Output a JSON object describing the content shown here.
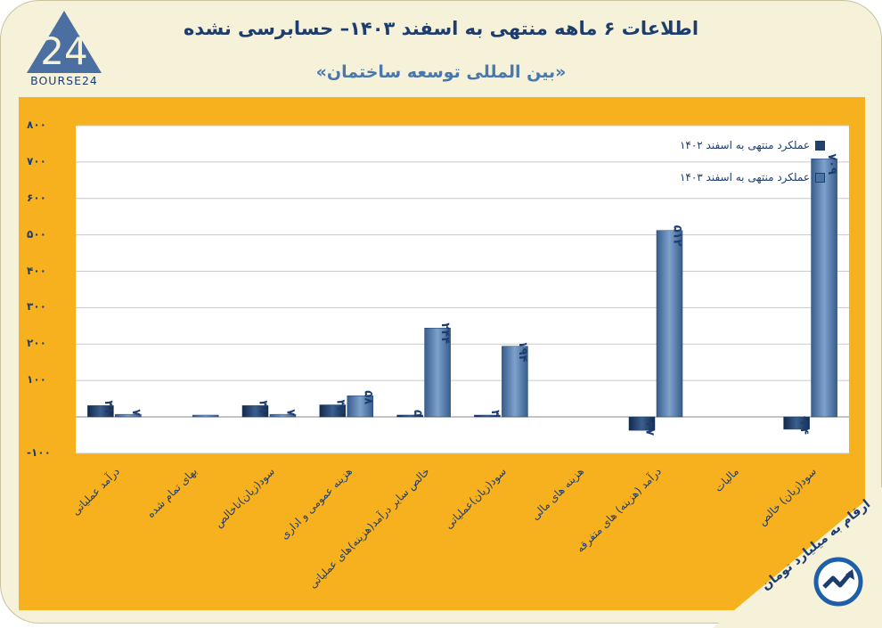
{
  "header": {
    "title": "اطلاعات ۶ ماهه منتهی به اسفند ۱۴۰۳– حسابرسی نشده",
    "subtitle": "«بین المللی توسعه ساختمان»",
    "logo_text": "BOURSE24"
  },
  "footer": {
    "units_note": "ارقام به میلیارد تومان"
  },
  "colors": {
    "background": "#f6f1d9",
    "panel": "#f7b11e",
    "series_1402": "#21426d",
    "series_1403": "#4b74a6",
    "text": "#1d3d6f"
  },
  "chart_data": {
    "type": "bar",
    "title": "بین المللی توسعه ساختمان",
    "xlabel": "",
    "ylabel": "",
    "ylim": [
      -100,
      800
    ],
    "yticks": [
      -100,
      100,
      200,
      300,
      400,
      500,
      600,
      700,
      800
    ],
    "ytick_labels": [
      "-۱۰۰",
      "۱۰۰",
      "۲۰۰",
      "۳۰۰",
      "۴۰۰",
      "۵۰۰",
      "۶۰۰",
      "۷۰۰",
      "۸۰۰"
    ],
    "grid": true,
    "legend_position": "top-right",
    "categories": [
      "درآمد عملیاتی",
      "بهای تمام شده",
      "سود(زیان)ناخالص",
      "هزینه عمومی و اداری",
      "خالص سایر درآمد(هزینه)های عملیاتی",
      "سود(زیان)عملیاتی",
      "هزینه های مالی",
      "درآمد (هزینه) های متفرقه",
      "مالیات",
      "سود(زیان) خالص"
    ],
    "series": [
      {
        "name": "عملکرد منتهی به اسفند ۱۴۰۲",
        "values": [
          31,
          null,
          31,
          33,
          5,
          3,
          null,
          -37,
          null,
          -34
        ],
        "labels": [
          "۳۱",
          "",
          "۳۱",
          "۳۳",
          "۵",
          "۳",
          "",
          "-۳۷",
          "",
          "-۳۴"
        ]
      },
      {
        "name": "عملکرد منتهی به اسفند ۱۴۰۳",
        "values": [
          7,
          0,
          7,
          58,
          244,
          194,
          null,
          512,
          null,
          709
        ],
        "labels": [
          "۷",
          "",
          "۷",
          "۵۸",
          "۲۴۴",
          "۱۹۴",
          "",
          "۵۱۲",
          "",
          "۷۰۹"
        ]
      }
    ]
  }
}
